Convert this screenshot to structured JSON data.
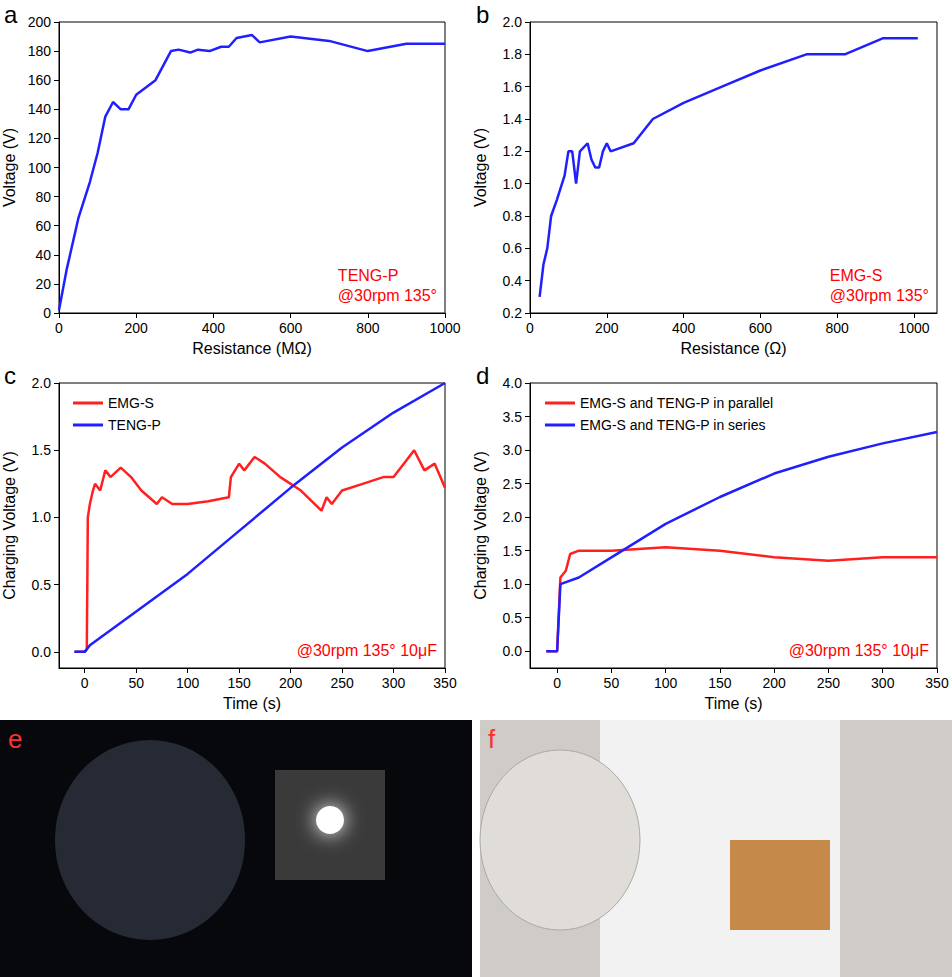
{
  "chart_data": [
    {
      "type": "line",
      "panel": "a",
      "x_label": "Resistance (MΩ)",
      "y_label": "Voltage (V)",
      "annotation": [
        "TENG-P",
        "@30rpm 135°"
      ],
      "x": [
        0,
        20,
        50,
        80,
        100,
        120,
        140,
        160,
        180,
        200,
        250,
        290,
        310,
        340,
        360,
        390,
        420,
        440,
        460,
        500,
        520,
        600,
        700,
        800,
        900,
        1000
      ],
      "values": [
        2,
        30,
        65,
        90,
        110,
        135,
        145,
        140,
        140,
        150,
        160,
        180,
        181,
        179,
        181,
        180,
        183,
        183,
        189,
        191,
        186,
        190,
        187,
        180,
        185,
        185
      ],
      "color": "#2020ff",
      "xlim": [
        0,
        1000
      ],
      "xticks": [
        0,
        200,
        400,
        600,
        800,
        1000
      ],
      "ylim": [
        0,
        200
      ],
      "yticks": [
        0,
        20,
        40,
        60,
        80,
        100,
        120,
        140,
        160,
        180,
        200
      ],
      "grid": false
    },
    {
      "type": "line",
      "panel": "b",
      "x_label": "Resistance (Ω)",
      "y_label": "Voltage (V)",
      "annotation": [
        "EMG-S",
        "@30rpm 135°"
      ],
      "x": [
        25,
        35,
        45,
        55,
        70,
        90,
        100,
        110,
        120,
        130,
        150,
        160,
        170,
        180,
        190,
        200,
        210,
        270,
        320,
        400,
        500,
        600,
        720,
        820,
        920,
        1010
      ],
      "values": [
        0.3,
        0.5,
        0.6,
        0.8,
        0.9,
        1.05,
        1.2,
        1.2,
        1.0,
        1.2,
        1.25,
        1.15,
        1.1,
        1.1,
        1.2,
        1.25,
        1.2,
        1.25,
        1.4,
        1.5,
        1.6,
        1.7,
        1.8,
        1.8,
        1.9,
        1.9
      ],
      "color": "#2020ff",
      "xlim": [
        0,
        1060
      ],
      "xticks": [
        0,
        200,
        400,
        600,
        800,
        1000
      ],
      "ylim": [
        0.2,
        2.0
      ],
      "yticks": [
        0.2,
        0.4,
        0.6,
        0.8,
        {
          "value": 1,
          "label": "1.0"
        },
        1.2,
        1.4,
        1.6,
        1.8,
        {
          "value": 2,
          "label": "2.0"
        }
      ],
      "grid": false
    },
    {
      "type": "line",
      "panel": "c",
      "x_label": "Time (s)",
      "y_label": "Charging Voltage (V)",
      "annotation": [
        "@30rpm 135° 10μF"
      ],
      "series": [
        {
          "name": "EMG-S",
          "color": "#ff2020",
          "x": [
            -10,
            0,
            2,
            3,
            5,
            8,
            10,
            15,
            20,
            25,
            35,
            45,
            55,
            70,
            75,
            85,
            100,
            120,
            140,
            142,
            150,
            155,
            165,
            175,
            190,
            210,
            230,
            235,
            240,
            250,
            270,
            290,
            300,
            310,
            320,
            330,
            340,
            350
          ],
          "values": [
            0,
            0,
            0.02,
            1.0,
            1.1,
            1.2,
            1.25,
            1.2,
            1.35,
            1.3,
            1.37,
            1.3,
            1.2,
            1.1,
            1.15,
            1.1,
            1.1,
            1.12,
            1.15,
            1.3,
            1.4,
            1.35,
            1.45,
            1.4,
            1.3,
            1.2,
            1.05,
            1.15,
            1.1,
            1.2,
            1.25,
            1.3,
            1.3,
            1.4,
            1.5,
            1.35,
            1.4,
            1.22
          ]
        },
        {
          "name": "TENG-P",
          "color": "#2020ff",
          "x": [
            -10,
            0,
            5,
            50,
            100,
            150,
            200,
            250,
            300,
            350
          ],
          "values": [
            0,
            0,
            0.05,
            0.3,
            0.58,
            0.9,
            1.22,
            1.52,
            1.78,
            2.0
          ]
        }
      ],
      "legend": "top-left",
      "xlim": [
        -25,
        350
      ],
      "xticks": [
        0,
        50,
        100,
        150,
        200,
        250,
        300,
        350
      ],
      "ylim": [
        -0.12,
        2.0
      ],
      "yticks": [
        {
          "value": 0,
          "label": "0.0"
        },
        0.5,
        {
          "value": 1,
          "label": "1.0"
        },
        1.5,
        {
          "value": 2,
          "label": "2.0"
        }
      ],
      "grid": false
    },
    {
      "type": "line",
      "panel": "d",
      "x_label": "Time (s)",
      "y_label": "Charging Voltage (V)",
      "annotation": [
        "@30rpm 135° 10μF"
      ],
      "series": [
        {
          "name": "EMG-S and TENG-P in parallel",
          "color": "#ff2020",
          "x": [
            -10,
            0,
            3,
            8,
            12,
            20,
            50,
            100,
            150,
            200,
            250,
            300,
            350
          ],
          "values": [
            0,
            0,
            1.1,
            1.2,
            1.45,
            1.5,
            1.5,
            1.55,
            1.5,
            1.4,
            1.35,
            1.4,
            1.4
          ]
        },
        {
          "name": "EMG-S and TENG-P in series",
          "color": "#2020ff",
          "x": [
            -10,
            0,
            3,
            20,
            50,
            100,
            150,
            200,
            250,
            300,
            350
          ],
          "values": [
            0,
            0,
            1.0,
            1.1,
            1.4,
            1.9,
            2.3,
            2.65,
            2.9,
            3.1,
            3.27
          ]
        }
      ],
      "legend": "top-left",
      "xlim": [
        -25,
        350
      ],
      "xticks": [
        0,
        50,
        100,
        150,
        200,
        250,
        300,
        350
      ],
      "ylim": [
        -0.25,
        4.0
      ],
      "yticks": [
        {
          "value": 0,
          "label": "0.0"
        },
        0.5,
        {
          "value": 1,
          "label": "1.0"
        },
        1.5,
        {
          "value": 2,
          "label": "2.0"
        },
        2.5,
        {
          "value": 3,
          "label": "3.0"
        },
        3.5,
        {
          "value": 4,
          "label": "4.0"
        }
      ],
      "grid": false
    }
  ],
  "images": [
    {
      "panel": "e"
    },
    {
      "panel": "f"
    }
  ]
}
